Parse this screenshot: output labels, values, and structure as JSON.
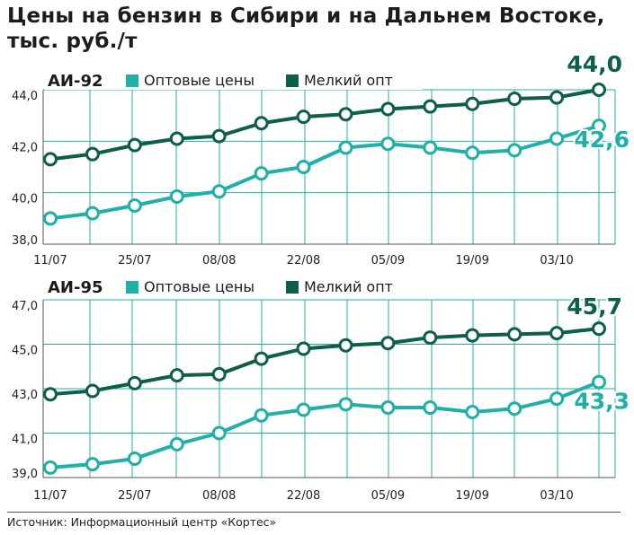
{
  "title": "Цены на бензин в Сибири и на Дальнем Востоке, тыс. руб./т",
  "source": "Источник: Информационный центр «Кортес»",
  "colors": {
    "wholesale": "#1fb0a8",
    "small_wholesale": "#0d5e4a",
    "grid": "#1fb0a8",
    "axis": "#555555"
  },
  "chart_data": [
    {
      "type": "line",
      "title": "АИ-92",
      "x": [
        "11/07",
        "18/07",
        "25/07",
        "01/08",
        "08/08",
        "15/08",
        "22/08",
        "29/08",
        "05/09",
        "12/09",
        "19/09",
        "26/09",
        "03/10",
        "10/10"
      ],
      "x_tick_labels": [
        "11/07",
        "25/07",
        "08/08",
        "22/08",
        "05/09",
        "19/09",
        "03/10"
      ],
      "y_tick_labels": [
        "38,0",
        "40,0",
        "42,0",
        "44,0"
      ],
      "ylim": [
        38,
        44
      ],
      "grid": true,
      "series": [
        {
          "name": "Оптовые цены",
          "values": [
            39.0,
            39.2,
            39.5,
            39.85,
            40.05,
            40.75,
            41.0,
            41.75,
            41.9,
            41.75,
            41.55,
            41.65,
            42.1,
            42.6
          ],
          "end_label": "42,6"
        },
        {
          "name": "Мелкий опт",
          "values": [
            41.3,
            41.5,
            41.85,
            42.1,
            42.2,
            42.7,
            42.95,
            43.05,
            43.25,
            43.35,
            43.45,
            43.65,
            43.7,
            44.0
          ],
          "end_label": "44,0"
        }
      ]
    },
    {
      "type": "line",
      "title": "АИ-95",
      "x": [
        "11/07",
        "18/07",
        "25/07",
        "01/08",
        "08/08",
        "15/08",
        "22/08",
        "29/08",
        "05/09",
        "12/09",
        "19/09",
        "26/09",
        "03/10",
        "10/10"
      ],
      "x_tick_labels": [
        "11/07",
        "25/07",
        "08/08",
        "22/08",
        "05/09",
        "19/09",
        "03/10"
      ],
      "y_tick_labels": [
        "39,0",
        "41,0",
        "43,0",
        "45,0",
        "47,0"
      ],
      "ylim": [
        39,
        47
      ],
      "grid": true,
      "series": [
        {
          "name": "Оптовые цены",
          "values": [
            39.45,
            39.6,
            39.85,
            40.5,
            41.0,
            41.8,
            42.05,
            42.3,
            42.15,
            42.15,
            41.95,
            42.1,
            42.55,
            43.3
          ],
          "end_label": "43,3"
        },
        {
          "name": "Мелкий опт",
          "values": [
            42.75,
            42.9,
            43.25,
            43.6,
            43.65,
            44.35,
            44.8,
            44.95,
            45.05,
            45.3,
            45.4,
            45.45,
            45.5,
            45.7
          ],
          "end_label": "45,7"
        }
      ]
    }
  ]
}
